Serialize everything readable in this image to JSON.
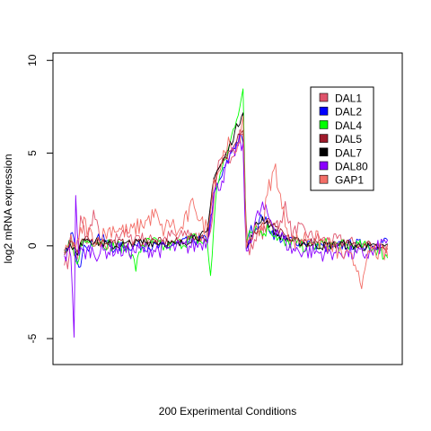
{
  "chart_data": {
    "type": "line",
    "title": "",
    "xlabel": "200 Experimental Conditions",
    "ylabel": "log2 mRNA expression",
    "ylim": [
      -6.4,
      10.4
    ],
    "xlim": [
      -7,
      208
    ],
    "yticks": [
      -5,
      0,
      5,
      10
    ],
    "ytick_labels": [
      "-5",
      "0",
      "5",
      "10"
    ],
    "grid": false,
    "x_axis_ticks": false,
    "legend": "top-right",
    "seed": 7,
    "n_points": 200,
    "series": [
      {
        "name": "DAL1",
        "color": "#DF536B",
        "keys": [
          [
            0,
            -0.7
          ],
          [
            2,
            -1.1
          ],
          [
            4,
            0.5
          ],
          [
            6,
            -0.4
          ],
          [
            8,
            -0.9
          ],
          [
            10,
            1.5
          ],
          [
            14,
            0.2
          ],
          [
            18,
            1.8
          ],
          [
            22,
            0.4
          ],
          [
            26,
            -0.3
          ],
          [
            30,
            0.2
          ],
          [
            36,
            0.9
          ],
          [
            40,
            0.3
          ],
          [
            46,
            0.6
          ],
          [
            50,
            0.2
          ],
          [
            56,
            0.4
          ],
          [
            60,
            0.3
          ],
          [
            66,
            0.6
          ],
          [
            70,
            0.4
          ],
          [
            76,
            0.8
          ],
          [
            80,
            0.4
          ],
          [
            84,
            0.5
          ],
          [
            88,
            0.7
          ],
          [
            90,
            0.7
          ],
          [
            94,
            4.2
          ],
          [
            98,
            4.6
          ],
          [
            102,
            4.8
          ],
          [
            106,
            5.4
          ],
          [
            108,
            6.1
          ],
          [
            110,
            5.9
          ],
          [
            112,
            0.9
          ],
          [
            114,
            -0.4
          ],
          [
            118,
            0.6
          ],
          [
            122,
            0.7
          ],
          [
            126,
            1.2
          ],
          [
            130,
            1.4
          ],
          [
            134,
            1.1
          ],
          [
            136,
            2.4
          ],
          [
            140,
            0.6
          ],
          [
            144,
            1.0
          ],
          [
            150,
            0.6
          ],
          [
            160,
            0.3
          ],
          [
            170,
            0.3
          ],
          [
            180,
            0.1
          ],
          [
            190,
            0.0
          ],
          [
            199,
            -0.1
          ]
        ],
        "amp": 0.35
      },
      {
        "name": "DAL2",
        "color": "#0000FF",
        "keys": [
          [
            0,
            -0.6
          ],
          [
            3,
            -0.2
          ],
          [
            5,
            1.0
          ],
          [
            7,
            -0.6
          ],
          [
            9,
            -1.4
          ],
          [
            12,
            0.3
          ],
          [
            16,
            -0.1
          ],
          [
            20,
            0.6
          ],
          [
            30,
            -0.1
          ],
          [
            40,
            0.0
          ],
          [
            50,
            0.0
          ],
          [
            60,
            -0.1
          ],
          [
            70,
            0.1
          ],
          [
            80,
            0.3
          ],
          [
            88,
            0.3
          ],
          [
            92,
            2.6
          ],
          [
            96,
            3.6
          ],
          [
            100,
            4.4
          ],
          [
            104,
            5.3
          ],
          [
            108,
            5.8
          ],
          [
            110,
            5.7
          ],
          [
            112,
            -0.4
          ],
          [
            114,
            0.8
          ],
          [
            118,
            1.0
          ],
          [
            122,
            1.6
          ],
          [
            126,
            1.0
          ],
          [
            130,
            0.5
          ],
          [
            136,
            0.3
          ],
          [
            140,
            0.3
          ],
          [
            150,
            0.2
          ],
          [
            160,
            -0.1
          ],
          [
            170,
            0.0
          ],
          [
            180,
            0.1
          ],
          [
            190,
            0.0
          ],
          [
            199,
            0.3
          ]
        ],
        "amp": 0.3
      },
      {
        "name": "DAL4",
        "color": "#00FF00",
        "keys": [
          [
            0,
            -0.4
          ],
          [
            4,
            0.1
          ],
          [
            8,
            -1.2
          ],
          [
            10,
            0.2
          ],
          [
            20,
            0.3
          ],
          [
            30,
            0.0
          ],
          [
            40,
            -0.1
          ],
          [
            44,
            -1.2
          ],
          [
            48,
            0.1
          ],
          [
            56,
            0.2
          ],
          [
            60,
            -0.1
          ],
          [
            70,
            0.1
          ],
          [
            80,
            0.4
          ],
          [
            88,
            0.1
          ],
          [
            90,
            -1.6
          ],
          [
            94,
            3.4
          ],
          [
            98,
            4.3
          ],
          [
            102,
            5.5
          ],
          [
            106,
            7.0
          ],
          [
            110,
            8.2
          ],
          [
            112,
            0.3
          ],
          [
            114,
            0.9
          ],
          [
            118,
            1.1
          ],
          [
            122,
            0.6
          ],
          [
            126,
            1.0
          ],
          [
            130,
            0.6
          ],
          [
            136,
            0.0
          ],
          [
            140,
            0.2
          ],
          [
            150,
            -0.1
          ],
          [
            160,
            0.1
          ],
          [
            170,
            0.0
          ],
          [
            180,
            0.0
          ],
          [
            190,
            -0.1
          ],
          [
            199,
            -0.6
          ]
        ],
        "amp": 0.35
      },
      {
        "name": "DAL5",
        "color": "#9E1B2B",
        "keys": [
          [
            0,
            -0.4
          ],
          [
            4,
            0.3
          ],
          [
            8,
            -0.3
          ],
          [
            12,
            0.3
          ],
          [
            20,
            0.3
          ],
          [
            30,
            0.2
          ],
          [
            40,
            0.1
          ],
          [
            50,
            0.3
          ],
          [
            60,
            0.2
          ],
          [
            70,
            0.2
          ],
          [
            80,
            0.5
          ],
          [
            88,
            0.4
          ],
          [
            92,
            3.5
          ],
          [
            96,
            4.2
          ],
          [
            100,
            4.8
          ],
          [
            104,
            5.5
          ],
          [
            108,
            6.2
          ],
          [
            110,
            6.3
          ],
          [
            112,
            0.4
          ],
          [
            114,
            0.0
          ],
          [
            118,
            0.8
          ],
          [
            122,
            1.2
          ],
          [
            126,
            1.3
          ],
          [
            130,
            0.9
          ],
          [
            136,
            0.5
          ],
          [
            140,
            0.3
          ],
          [
            150,
            0.2
          ],
          [
            160,
            0.1
          ],
          [
            170,
            0.2
          ],
          [
            180,
            0.1
          ],
          [
            190,
            0.0
          ],
          [
            199,
            0.0
          ]
        ],
        "amp": 0.25
      },
      {
        "name": "DAL7",
        "color": "#000000",
        "keys": [
          [
            0,
            -0.3
          ],
          [
            4,
            0.2
          ],
          [
            8,
            -0.6
          ],
          [
            12,
            0.5
          ],
          [
            20,
            0.2
          ],
          [
            30,
            0.0
          ],
          [
            40,
            0.1
          ],
          [
            50,
            0.2
          ],
          [
            60,
            0.2
          ],
          [
            70,
            0.0
          ],
          [
            80,
            0.5
          ],
          [
            88,
            0.6
          ],
          [
            92,
            3.8
          ],
          [
            96,
            4.3
          ],
          [
            100,
            5.0
          ],
          [
            104,
            5.9
          ],
          [
            108,
            6.8
          ],
          [
            110,
            7.4
          ],
          [
            112,
            -0.2
          ],
          [
            114,
            0.2
          ],
          [
            118,
            1.1
          ],
          [
            122,
            1.5
          ],
          [
            126,
            1.2
          ],
          [
            130,
            0.7
          ],
          [
            136,
            0.4
          ],
          [
            140,
            0.3
          ],
          [
            150,
            0.1
          ],
          [
            160,
            0.0
          ],
          [
            170,
            0.1
          ],
          [
            180,
            0.0
          ],
          [
            190,
            -0.1
          ],
          [
            199,
            0.0
          ]
        ],
        "amp": 0.25
      },
      {
        "name": "DAL80",
        "color": "#8B00FF",
        "keys": [
          [
            0,
            -0.6
          ],
          [
            4,
            -0.3
          ],
          [
            6,
            -4.6
          ],
          [
            7,
            2.4
          ],
          [
            9,
            -0.4
          ],
          [
            12,
            -0.4
          ],
          [
            16,
            -0.2
          ],
          [
            20,
            -0.4
          ],
          [
            30,
            -0.2
          ],
          [
            40,
            -0.3
          ],
          [
            50,
            -0.2
          ],
          [
            60,
            -0.2
          ],
          [
            70,
            -0.1
          ],
          [
            80,
            0.0
          ],
          [
            88,
            0.3
          ],
          [
            92,
            2.8
          ],
          [
            96,
            3.4
          ],
          [
            100,
            4.2
          ],
          [
            104,
            5.0
          ],
          [
            108,
            5.5
          ],
          [
            110,
            5.2
          ],
          [
            112,
            -0.7
          ],
          [
            114,
            0.3
          ],
          [
            118,
            1.4
          ],
          [
            122,
            2.1
          ],
          [
            126,
            1.5
          ],
          [
            130,
            1.0
          ],
          [
            136,
            0.2
          ],
          [
            140,
            -0.2
          ],
          [
            150,
            -0.3
          ],
          [
            160,
            -0.4
          ],
          [
            170,
            -0.3
          ],
          [
            180,
            -0.5
          ],
          [
            190,
            -0.4
          ],
          [
            199,
            0.4
          ]
        ],
        "amp": 0.45
      },
      {
        "name": "GAP1",
        "color": "#F36E67",
        "keys": [
          [
            0,
            -0.7
          ],
          [
            4,
            0.3
          ],
          [
            8,
            -0.1
          ],
          [
            12,
            1.3
          ],
          [
            16,
            0.6
          ],
          [
            20,
            0.3
          ],
          [
            30,
            1.0
          ],
          [
            40,
            0.7
          ],
          [
            50,
            1.3
          ],
          [
            56,
            1.7
          ],
          [
            60,
            0.8
          ],
          [
            66,
            1.3
          ],
          [
            70,
            0.6
          ],
          [
            76,
            1.6
          ],
          [
            80,
            2.4
          ],
          [
            84,
            1.2
          ],
          [
            88,
            1.0
          ],
          [
            92,
            3.5
          ],
          [
            96,
            4.3
          ],
          [
            100,
            5.6
          ],
          [
            104,
            4.8
          ],
          [
            108,
            6.0
          ],
          [
            110,
            6.5
          ],
          [
            112,
            0.2
          ],
          [
            114,
            0.4
          ],
          [
            118,
            0.9
          ],
          [
            122,
            1.1
          ],
          [
            126,
            3.2
          ],
          [
            130,
            4.2
          ],
          [
            134,
            2.0
          ],
          [
            140,
            0.2
          ],
          [
            150,
            0.5
          ],
          [
            160,
            0.2
          ],
          [
            170,
            -0.4
          ],
          [
            180,
            -1.0
          ],
          [
            184,
            -2.1
          ],
          [
            188,
            -0.2
          ],
          [
            199,
            -0.5
          ]
        ],
        "amp": 0.5
      }
    ]
  }
}
